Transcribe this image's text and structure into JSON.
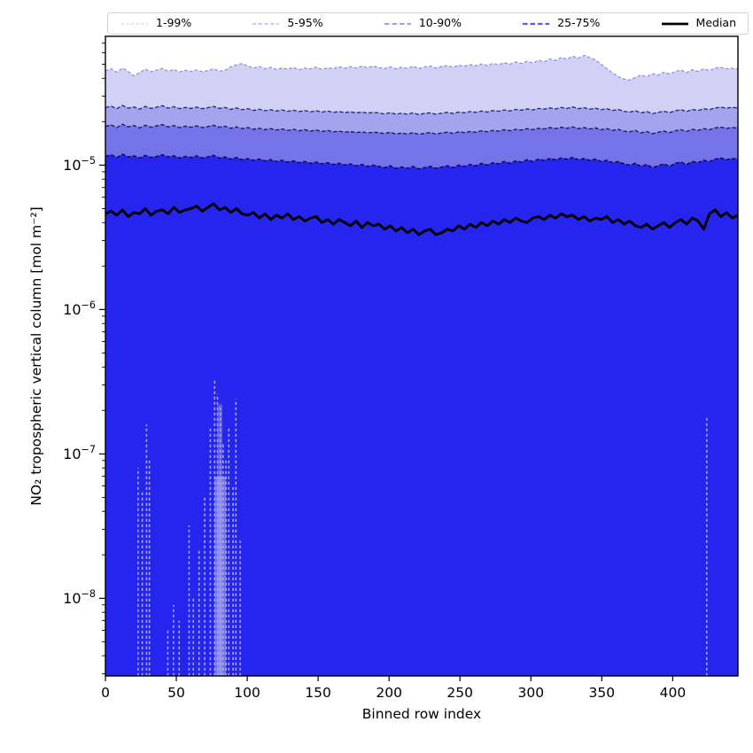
{
  "figure": {
    "background": "#ffffff"
  },
  "legend": {
    "items": [
      {
        "label": "1-99%",
        "color": "#cdcdf4",
        "style": "dashed",
        "width": 1.2,
        "dash": "3,2.6"
      },
      {
        "label": "5-95%",
        "color": "#a6a6ee",
        "style": "dashed",
        "width": 1.3,
        "dash": "4,2.8"
      },
      {
        "label": "10-90%",
        "color": "#8080e6",
        "style": "dashed",
        "width": 1.6,
        "dash": "5.5,3"
      },
      {
        "label": "25-75%",
        "color": "#5c5ce0",
        "style": "dashed",
        "width": 2.2,
        "dash": "5.5,3"
      },
      {
        "label": "Median",
        "color": "#000000",
        "style": "solid",
        "width": 2.8,
        "dash": ""
      }
    ]
  },
  "chart_data": {
    "type": "area",
    "subtype": "percentile-fan",
    "title": "",
    "xlabel": "Binned row index",
    "ylabel": "NO₂ tropospheric vertical column [mol m⁻²]",
    "yscale": "log",
    "grid": false,
    "legend_position": "top",
    "xlim": [
      0,
      446
    ],
    "ylim": [
      2.9e-09,
      7.8e-05
    ],
    "x_ticks": [
      0,
      50,
      100,
      150,
      200,
      250,
      300,
      350,
      400
    ],
    "y_major_ticks": [
      {
        "value": 1e-05,
        "base": "10",
        "exp": "−5"
      },
      {
        "value": 1e-06,
        "base": "10",
        "exp": "−6"
      },
      {
        "value": 1e-07,
        "base": "10",
        "exp": "−7"
      },
      {
        "value": 1e-08,
        "base": "10",
        "exp": "−8"
      }
    ],
    "value_scale": 1e-06,
    "series": [
      {
        "name": "p99",
        "band_label": "1-99%",
        "fill_color": "#d1d1f5",
        "line_color": "#8f8fe0",
        "values": [
          45.0,
          46.5,
          44.0,
          47.0,
          44.5,
          41.5,
          43.8,
          46.2,
          44.3,
          45.5,
          46.8,
          44.6,
          46.0,
          44.2,
          45.4,
          44.6,
          45.6,
          44.4,
          45.2,
          46.4,
          44.7,
          45.4,
          48.0,
          49.5,
          50.5,
          48.5,
          47.0,
          48.2,
          46.5,
          47.5,
          46.0,
          47.0,
          46.2,
          47.4,
          45.8,
          47.0,
          46.4,
          47.8,
          46.0,
          47.2,
          46.6,
          48.0,
          46.8,
          48.2,
          47.0,
          48.5,
          47.2,
          48.6,
          47.4,
          46.6,
          48.0,
          46.4,
          47.6,
          46.8,
          48.4,
          46.6,
          47.8,
          48.6,
          47.0,
          48.2,
          48.8,
          47.6,
          49.2,
          48.4,
          49.6,
          48.8,
          50.2,
          49.0,
          50.6,
          49.6,
          51.2,
          50.0,
          51.8,
          50.6,
          52.4,
          51.0,
          53.2,
          52.0,
          54.4,
          53.0,
          55.6,
          54.2,
          56.8,
          55.0,
          57.5,
          55.5,
          53.5,
          50.0,
          46.5,
          43.5,
          41.0,
          39.5,
          38.8,
          40.5,
          42.0,
          41.0,
          43.0,
          42.0,
          44.0,
          42.8,
          44.5,
          45.5,
          43.8,
          45.8,
          44.6,
          46.4,
          45.2,
          47.0,
          47.6,
          46.4,
          46.8,
          46.2
        ]
      },
      {
        "name": "p95",
        "band_label": "5-95%",
        "fill_color": "#a3a3ee",
        "line_color": "#24247c",
        "values": [
          25.0,
          25.6,
          24.6,
          25.9,
          24.8,
          25.3,
          24.4,
          25.5,
          24.7,
          25.2,
          25.8,
          24.8,
          25.4,
          24.6,
          25.1,
          24.7,
          25.2,
          24.6,
          25.0,
          25.5,
          24.7,
          25.1,
          24.3,
          24.9,
          24.2,
          24.6,
          23.9,
          24.4,
          23.8,
          24.2,
          23.7,
          24.1,
          23.6,
          24.0,
          23.5,
          23.9,
          23.4,
          23.8,
          23.3,
          23.7,
          23.2,
          23.5,
          23.1,
          23.4,
          23.0,
          23.3,
          22.9,
          23.2,
          23.0,
          22.6,
          23.1,
          22.5,
          22.9,
          22.5,
          23.0,
          22.4,
          22.8,
          23.0,
          22.5,
          22.9,
          23.2,
          22.8,
          23.3,
          23.0,
          23.5,
          23.2,
          23.7,
          23.3,
          23.9,
          23.6,
          24.1,
          23.7,
          24.3,
          24.0,
          24.5,
          24.1,
          24.7,
          24.4,
          24.9,
          24.5,
          25.1,
          24.7,
          25.3,
          24.6,
          25.0,
          24.4,
          24.8,
          24.2,
          24.6,
          23.9,
          24.3,
          23.6,
          23.3,
          23.8,
          23.0,
          23.5,
          22.7,
          23.2,
          23.6,
          23.1,
          23.8,
          24.2,
          23.5,
          24.3,
          23.9,
          24.6,
          24.2,
          24.9,
          25.2,
          24.8,
          25.1,
          24.9
        ]
      },
      {
        "name": "p90",
        "band_label": "10-90%",
        "fill_color": "#7474e8",
        "line_color": "#1c1c6c",
        "values": [
          18.5,
          19.0,
          18.2,
          19.2,
          18.4,
          18.8,
          18.1,
          18.9,
          18.3,
          18.7,
          19.1,
          18.4,
          18.8,
          18.2,
          18.6,
          18.3,
          18.7,
          18.2,
          18.5,
          18.9,
          18.3,
          18.6,
          18.0,
          18.4,
          17.9,
          18.2,
          17.7,
          18.0,
          17.6,
          17.9,
          17.5,
          17.8,
          17.4,
          17.7,
          17.3,
          17.6,
          17.2,
          17.5,
          17.1,
          17.4,
          17.0,
          17.2,
          16.9,
          17.1,
          16.8,
          17.0,
          16.7,
          16.9,
          16.8,
          16.5,
          16.9,
          16.4,
          16.7,
          16.4,
          16.8,
          16.3,
          16.6,
          16.8,
          16.4,
          16.7,
          16.9,
          16.6,
          17.0,
          16.8,
          17.1,
          16.9,
          17.3,
          17.0,
          17.4,
          17.2,
          17.6,
          17.3,
          17.7,
          17.5,
          17.9,
          17.6,
          18.0,
          17.8,
          18.2,
          17.9,
          18.3,
          18.0,
          18.4,
          17.9,
          18.2,
          17.8,
          18.1,
          17.6,
          17.9,
          17.4,
          17.7,
          17.2,
          17.0,
          17.4,
          16.7,
          17.1,
          16.5,
          16.9,
          17.2,
          16.8,
          17.3,
          17.6,
          17.1,
          17.7,
          17.4,
          17.9,
          17.6,
          18.1,
          18.3,
          18.0,
          18.2,
          18.1
        ]
      },
      {
        "name": "p75",
        "band_label": "25-75%",
        "fill_color": "#2525ef",
        "line_color": "#0e0e52",
        "values": [
          11.5,
          11.8,
          11.3,
          11.9,
          11.4,
          11.6,
          11.2,
          11.7,
          11.3,
          11.5,
          11.8,
          11.4,
          11.6,
          11.2,
          11.5,
          11.3,
          11.6,
          11.2,
          11.4,
          11.7,
          11.2,
          11.4,
          11.0,
          11.3,
          10.9,
          11.1,
          10.8,
          11.0,
          10.7,
          10.9,
          10.6,
          10.8,
          10.5,
          10.7,
          10.4,
          10.6,
          10.3,
          10.5,
          10.2,
          10.4,
          10.1,
          10.3,
          10.0,
          10.2,
          9.9,
          10.1,
          9.8,
          10.0,
          9.8,
          9.6,
          9.9,
          9.5,
          9.7,
          9.5,
          9.8,
          9.4,
          9.6,
          9.8,
          9.5,
          9.7,
          9.9,
          9.6,
          10.0,
          9.8,
          10.1,
          9.9,
          10.3,
          10.0,
          10.4,
          10.2,
          10.6,
          10.3,
          10.7,
          10.5,
          10.9,
          10.6,
          11.0,
          10.8,
          11.1,
          10.9,
          11.2,
          11.0,
          11.3,
          10.9,
          11.1,
          10.8,
          11.0,
          10.6,
          10.8,
          10.4,
          10.6,
          10.2,
          10.0,
          10.3,
          9.8,
          10.1,
          9.6,
          9.9,
          10.2,
          9.8,
          10.3,
          10.5,
          10.1,
          10.6,
          10.4,
          10.8,
          10.6,
          11.0,
          11.2,
          10.9,
          11.1,
          11.0
        ]
      },
      {
        "name": "median",
        "band_label": "Median",
        "fill_color": "",
        "line_color": "#000000",
        "values": [
          4.6,
          4.8,
          4.5,
          4.9,
          4.4,
          4.7,
          4.6,
          5.0,
          4.5,
          4.8,
          4.9,
          4.6,
          5.1,
          4.7,
          4.9,
          5.0,
          5.2,
          4.8,
          5.1,
          5.4,
          4.9,
          5.1,
          4.7,
          5.0,
          4.6,
          4.5,
          4.7,
          4.3,
          4.6,
          4.2,
          4.5,
          4.3,
          4.6,
          4.2,
          4.4,
          4.1,
          4.3,
          4.4,
          4.0,
          4.2,
          3.9,
          4.2,
          4.0,
          3.8,
          4.1,
          3.7,
          4.0,
          3.8,
          3.9,
          3.6,
          3.8,
          3.5,
          3.7,
          3.4,
          3.6,
          3.3,
          3.5,
          3.6,
          3.3,
          3.4,
          3.6,
          3.5,
          3.8,
          3.6,
          3.9,
          3.7,
          4.0,
          3.8,
          4.1,
          3.9,
          4.2,
          4.0,
          4.3,
          4.1,
          4.0,
          4.3,
          4.4,
          4.2,
          4.5,
          4.3,
          4.6,
          4.4,
          4.5,
          4.2,
          4.4,
          4.1,
          4.3,
          4.2,
          4.4,
          4.0,
          4.2,
          3.9,
          4.1,
          3.8,
          3.7,
          3.9,
          3.6,
          3.8,
          4.0,
          3.7,
          4.0,
          4.2,
          3.9,
          4.3,
          4.1,
          3.6,
          4.6,
          4.9,
          4.4,
          4.7,
          4.3,
          4.5
        ]
      }
    ],
    "low_percentile_spikes": [
      [
        23,
        8e-08
      ],
      [
        26,
        5.5e-08
      ],
      [
        29,
        1.6e-07
      ],
      [
        31,
        9e-08
      ],
      [
        44,
        6e-09
      ],
      [
        48,
        9e-09
      ],
      [
        52,
        7e-09
      ],
      [
        59,
        3.2e-08
      ],
      [
        62,
        1e-08
      ],
      [
        66,
        2.2e-08
      ],
      [
        70,
        5e-08
      ],
      [
        74,
        1.5e-07
      ],
      [
        77,
        3.3e-07
      ],
      [
        79,
        2.6e-07
      ],
      [
        81,
        2.2e-07
      ],
      [
        83,
        1.2e-07
      ],
      [
        85,
        9e-08
      ],
      [
        87,
        1.5e-07
      ],
      [
        90,
        6e-08
      ],
      [
        92,
        2.4e-07
      ],
      [
        95,
        2.5e-08
      ],
      [
        424,
        1.8e-07
      ]
    ],
    "spike_bands": [
      {
        "from": 77.0,
        "to": 85.0,
        "top": 7e-08,
        "opacity": 0.5
      },
      {
        "from": 79.0,
        "to": 82.5,
        "top": 2.2e-07,
        "opacity": 0.35
      }
    ],
    "colors": {
      "spike": "#a8a8ef",
      "median": "#000000",
      "spine": "#000000"
    }
  }
}
